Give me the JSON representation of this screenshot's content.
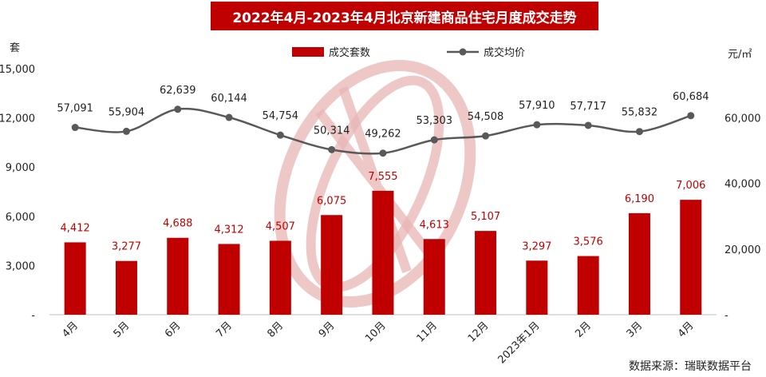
{
  "chart_data": {
    "type": "bar",
    "title": "2022年4月-2023年4月北京新建商品住宅月度成交走势",
    "categories": [
      "4月",
      "5月",
      "6月",
      "7月",
      "8月",
      "9月",
      "10月",
      "11月",
      "12月",
      "2023年1月",
      "2月",
      "3月",
      "4月"
    ],
    "series": [
      {
        "name": "成交套数",
        "type": "bar",
        "values": [
          4412,
          3277,
          4688,
          4312,
          4507,
          6075,
          7555,
          4613,
          5107,
          3297,
          3576,
          6190,
          7006
        ],
        "labels": [
          "4,412",
          "3,277",
          "4,688",
          "4,312",
          "4,507",
          "6,075",
          "7,555",
          "4,613",
          "5,107",
          "3,297",
          "3,576",
          "6,190",
          "7,006"
        ]
      },
      {
        "name": "成交均价",
        "type": "line",
        "values": [
          57091,
          55904,
          62639,
          60144,
          54754,
          50314,
          49262,
          53303,
          54508,
          57910,
          57717,
          55832,
          60684
        ],
        "labels": [
          "57,091",
          "55,904",
          "62,639",
          "60,144",
          "54,754",
          "50,314",
          "49,262",
          "53,303",
          "54,508",
          "57,910",
          "57,717",
          "55,832",
          "60,684"
        ]
      }
    ],
    "left_axis": {
      "unit": "套",
      "ylim": [
        0,
        15000
      ],
      "ticks": [
        "-",
        "3,000",
        "6,000",
        "9,000",
        "12,000",
        "15,000"
      ]
    },
    "right_axis": {
      "unit": "元/㎡",
      "ylim": [
        0,
        75000
      ],
      "ticks": [
        "-",
        "20,000",
        "40,000",
        "60,000"
      ]
    },
    "legend_position": "top-center",
    "grid": false,
    "source": "数据来源：瑞联数据平台",
    "colors": {
      "bar": "#c00000",
      "line": "#595959",
      "bar_label": "#c00000"
    }
  }
}
